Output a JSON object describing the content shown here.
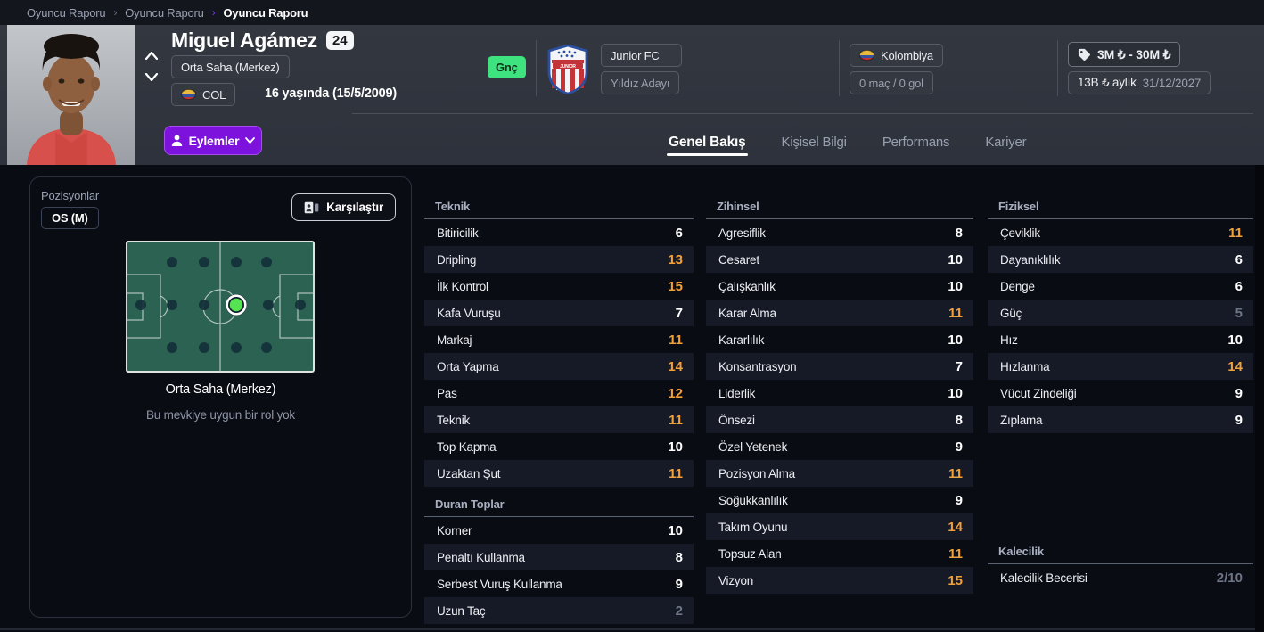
{
  "theme": {
    "accent_purple": "#7c3aed",
    "attr_high": "#f1a13a",
    "attr_low": "#6e7587",
    "youth_green": "#3ee27e",
    "pitch_green": "#2b6252"
  },
  "breadcrumb": {
    "items": [
      "Oyuncu Raporu",
      "Oyuncu Raporu",
      "Oyuncu Raporu"
    ]
  },
  "header": {
    "player_name": "Miguel Agámez",
    "rating_badge": "24",
    "position": "Orta Saha (Merkez)",
    "nationality_code": "COL",
    "age_text": "16 yaşında (15/5/2009)",
    "youth_badge": "Gnç",
    "club": {
      "name": "Junior FC",
      "status": "Yıldız Adayı"
    },
    "nation": {
      "name": "Kolombiya",
      "record": "0 maç / 0 gol"
    },
    "value": {
      "range": "3M ₺ - 30M ₺",
      "wage": "13B ₺ aylık",
      "contract_end": "31/12/2027"
    },
    "actions_button": "Eylemler",
    "tabs": [
      {
        "label": "Genel Bakış",
        "active": true
      },
      {
        "label": "Kişisel Bilgi",
        "active": false
      },
      {
        "label": "Performans",
        "active": false
      },
      {
        "label": "Kariyer",
        "active": false
      }
    ]
  },
  "positions_panel": {
    "title": "Pozisyonlar",
    "position_tag": "OS (M)",
    "compare_button": "Karşılaştır",
    "caption": "Orta Saha (Merkez)",
    "note": "Bu mevkiye uygun bir rol yok",
    "selected_position": "Orta Saha (Merkez)"
  },
  "attributes": {
    "sections": [
      {
        "title": "Teknik",
        "column": 1,
        "rows": [
          {
            "label": "Bitiricilik",
            "value": "6"
          },
          {
            "label": "Dripling",
            "value": "13"
          },
          {
            "label": "İlk Kontrol",
            "value": "15"
          },
          {
            "label": "Kafa Vuruşu",
            "value": "7"
          },
          {
            "label": "Markaj",
            "value": "11"
          },
          {
            "label": "Orta Yapma",
            "value": "14"
          },
          {
            "label": "Pas",
            "value": "12"
          },
          {
            "label": "Teknik",
            "value": "11"
          },
          {
            "label": "Top Kapma",
            "value": "10"
          },
          {
            "label": "Uzaktan Şut",
            "value": "11"
          }
        ]
      },
      {
        "title": "Duran Toplar",
        "column": 1,
        "rows": [
          {
            "label": "Korner",
            "value": "10"
          },
          {
            "label": "Penaltı Kullanma",
            "value": "8"
          },
          {
            "label": "Serbest Vuruş Kullanma",
            "value": "9"
          },
          {
            "label": "Uzun Taç",
            "value": "2"
          }
        ]
      },
      {
        "title": "Zihinsel",
        "column": 2,
        "rows": [
          {
            "label": "Agresiflik",
            "value": "8"
          },
          {
            "label": "Cesaret",
            "value": "10"
          },
          {
            "label": "Çalışkanlık",
            "value": "10"
          },
          {
            "label": "Karar Alma",
            "value": "11"
          },
          {
            "label": "Kararlılık",
            "value": "10"
          },
          {
            "label": "Konsantrasyon",
            "value": "7"
          },
          {
            "label": "Liderlik",
            "value": "10"
          },
          {
            "label": "Önsezi",
            "value": "8"
          },
          {
            "label": "Özel Yetenek",
            "value": "9"
          },
          {
            "label": "Pozisyon Alma",
            "value": "11"
          },
          {
            "label": "Soğukkanlılık",
            "value": "9"
          },
          {
            "label": "Takım Oyunu",
            "value": "14"
          },
          {
            "label": "Topsuz Alan",
            "value": "11"
          },
          {
            "label": "Vizyon",
            "value": "15"
          }
        ]
      },
      {
        "title": "Fiziksel",
        "column": 3,
        "rows": [
          {
            "label": "Çeviklik",
            "value": "11"
          },
          {
            "label": "Dayanıklılık",
            "value": "6"
          },
          {
            "label": "Denge",
            "value": "6"
          },
          {
            "label": "Güç",
            "value": "5"
          },
          {
            "label": "Hız",
            "value": "10"
          },
          {
            "label": "Hızlanma",
            "value": "14"
          },
          {
            "label": "Vücut Zindeliği",
            "value": "9"
          },
          {
            "label": "Zıplama",
            "value": "9"
          }
        ]
      },
      {
        "title": "Kalecilik",
        "column": 3,
        "rows": [
          {
            "label": "Kalecilik Becerisi",
            "value": "2/10"
          }
        ]
      }
    ]
  }
}
